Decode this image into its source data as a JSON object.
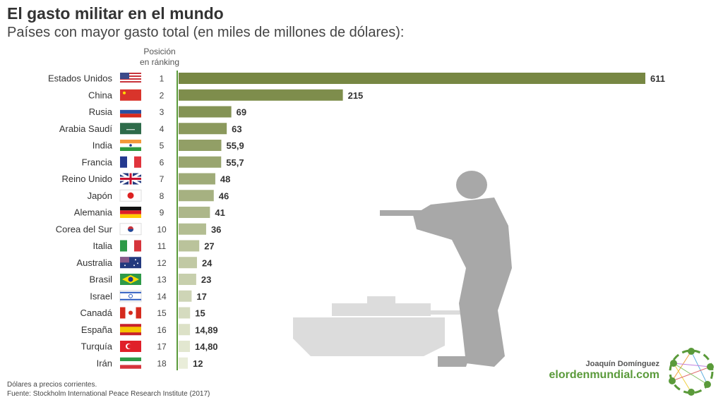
{
  "header": {
    "title": "El gasto militar en el mundo",
    "subtitle": "Países con mayor gasto total (en miles de millones de dólares):"
  },
  "rank_header": {
    "line1": "Posición",
    "line2": "en ránking"
  },
  "chart_data": {
    "type": "bar",
    "orientation": "horizontal",
    "title": "El gasto militar en el mundo",
    "subtitle": "Países con mayor gasto total (en miles de millones de dólares):",
    "categories": [
      "Estados Unidos",
      "China",
      "Rusia",
      "Arabia Saudí",
      "India",
      "Francia",
      "Reino Unido",
      "Japón",
      "Alemania",
      "Corea del Sur",
      "Italia",
      "Australia",
      "Brasil",
      "Israel",
      "Canadá",
      "España",
      "Turquía",
      "Irán"
    ],
    "ranks": [
      "1",
      "2",
      "3",
      "4",
      "5",
      "6",
      "7",
      "8",
      "9",
      "10",
      "11",
      "12",
      "13",
      "14",
      "15",
      "16",
      "17",
      "18"
    ],
    "values": [
      611,
      215,
      69,
      63,
      55.9,
      55.7,
      48,
      46,
      41,
      36,
      27,
      24,
      23,
      17,
      15,
      14.89,
      14.8,
      12
    ],
    "labels": [
      "611",
      "215",
      "69",
      "63",
      "55,9",
      "55,7",
      "48",
      "46",
      "41",
      "36",
      "27",
      "24",
      "23",
      "17",
      "15",
      "14,89",
      "14,80",
      "12"
    ],
    "flags": [
      "usa",
      "china",
      "russia",
      "saudi-arabia",
      "india",
      "france",
      "uk",
      "japan",
      "germany",
      "south-korea",
      "italy",
      "australia",
      "brazil",
      "israel",
      "canada",
      "spain",
      "turkey",
      "iran"
    ],
    "color_start": "#778743",
    "color_end": "#e9edd9",
    "axis_color": "#5a9a3a",
    "grid": false,
    "legend": "none"
  },
  "footer": {
    "note": "Dólares a precios corrientes.",
    "source": "Fuente: Stockholm International Peace Research Institute (2017)"
  },
  "credits": {
    "author": "Joaquín Domínguez",
    "site": "elordenmundial.com"
  }
}
